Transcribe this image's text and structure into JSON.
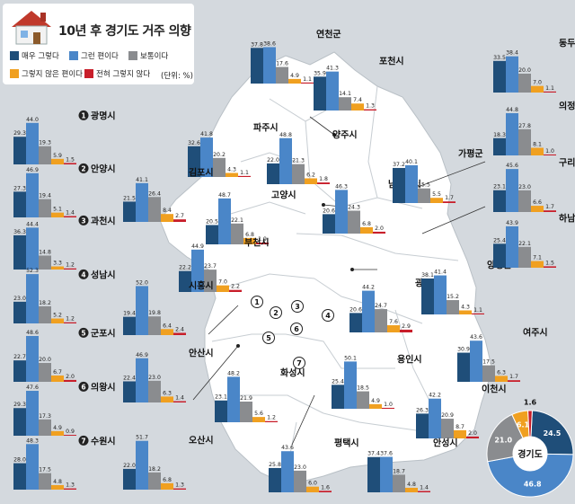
{
  "title": "10년 후 경기도 거주 의향",
  "unit_label": "(단위: %)",
  "legend": [
    {
      "label": "매우 그렇다",
      "color": "#1f4e79"
    },
    {
      "label": "그런 편이다",
      "color": "#4a86c8"
    },
    {
      "label": "보통이다",
      "color": "#8a8c8f"
    },
    {
      "label": "그렇지 않은 편이다",
      "color": "#f0a020"
    },
    {
      "label": "전혀 그렇지 않다",
      "color": "#c81e2a"
    }
  ],
  "chart_data": {
    "type": "bar",
    "title": "10년 후 경기도 거주 의향",
    "categories": [
      "매우 그렇다",
      "그런 편이다",
      "보통이다",
      "그렇지 않은 편이다",
      "전혀 그렇지 않다"
    ],
    "cities": [
      {
        "name": "광명시",
        "num": "1",
        "values": [
          29.3,
          44.0,
          19.3,
          5.9,
          1.5
        ]
      },
      {
        "name": "안양시",
        "num": "2",
        "values": [
          27.3,
          46.9,
          19.4,
          5.1,
          1.4
        ]
      },
      {
        "name": "과천시",
        "num": "3",
        "values": [
          36.3,
          44.4,
          14.8,
          3.3,
          1.2
        ]
      },
      {
        "name": "성남시",
        "num": "4",
        "values": [
          23.0,
          52.3,
          18.2,
          5.2,
          1.2
        ]
      },
      {
        "name": "군포시",
        "num": "5",
        "values": [
          22.7,
          48.6,
          20.0,
          6.7,
          2.0
        ]
      },
      {
        "name": "의왕시",
        "num": "6",
        "values": [
          29.3,
          47.6,
          17.3,
          4.9,
          0.9
        ]
      },
      {
        "name": "수원시",
        "num": "7",
        "values": [
          28.0,
          48.3,
          17.5,
          4.8,
          1.3
        ]
      },
      {
        "name": "연천군",
        "values": [
          37.8,
          38.6,
          17.6,
          4.9,
          1.1
        ]
      },
      {
        "name": "포천시",
        "values": [
          35.9,
          41.3,
          14.1,
          7.4,
          1.3
        ]
      },
      {
        "name": "파주시",
        "values": [
          32.6,
          41.8,
          20.2,
          4.3,
          1.1
        ]
      },
      {
        "name": "양주시",
        "values": [
          22.0,
          48.8,
          21.3,
          6.2,
          1.8
        ]
      },
      {
        "name": "김포시",
        "values": [
          21.5,
          41.1,
          26.4,
          8.4,
          2.7
        ]
      },
      {
        "name": "고양시",
        "values": [
          20.5,
          48.7,
          22.1,
          6.8,
          1.9
        ]
      },
      {
        "name": "남양주시",
        "values": [
          20.6,
          46.3,
          24.3,
          6.8,
          2.0
        ]
      },
      {
        "name": "가평군",
        "values": [
          37.2,
          40.1,
          15.5,
          5.5,
          1.7
        ]
      },
      {
        "name": "부천시",
        "values": [
          22.2,
          44.9,
          23.7,
          7.0,
          2.2
        ]
      },
      {
        "name": "시흥시",
        "values": [
          19.4,
          52.0,
          19.8,
          6.4,
          2.4
        ]
      },
      {
        "name": "광주시",
        "values": [
          20.6,
          44.2,
          24.7,
          7.6,
          2.9
        ]
      },
      {
        "name": "양평군",
        "values": [
          38.1,
          41.4,
          15.2,
          4.3,
          1.1
        ]
      },
      {
        "name": "안산시",
        "values": [
          22.4,
          46.9,
          23.0,
          6.3,
          1.4
        ]
      },
      {
        "name": "여주시",
        "values": [
          30.9,
          43.6,
          17.5,
          6.3,
          1.7
        ]
      },
      {
        "name": "화성시",
        "values": [
          23.1,
          48.2,
          21.9,
          5.6,
          1.2
        ]
      },
      {
        "name": "용인시",
        "values": [
          25.4,
          50.1,
          18.5,
          4.9,
          1.0
        ]
      },
      {
        "name": "이천시",
        "values": [
          26.3,
          42.2,
          20.9,
          8.7,
          2.0
        ]
      },
      {
        "name": "오산시",
        "values": [
          22.0,
          51.7,
          18.2,
          6.8,
          1.3
        ]
      },
      {
        "name": "평택시",
        "values": [
          25.8,
          43.6,
          23.0,
          6.0,
          1.6
        ]
      },
      {
        "name": "안성시",
        "values": [
          37.4,
          37.6,
          18.7,
          4.8,
          1.4
        ]
      },
      {
        "name": "동두천시",
        "values": [
          33.5,
          38.4,
          20.0,
          7.0,
          1.1
        ]
      },
      {
        "name": "의정부시",
        "values": [
          18.3,
          44.8,
          27.8,
          8.1,
          1.0
        ]
      },
      {
        "name": "구리시",
        "values": [
          23.1,
          45.6,
          23.0,
          6.6,
          1.7
        ]
      },
      {
        "name": "하남시",
        "values": [
          25.4,
          43.9,
          22.1,
          7.1,
          1.5
        ]
      }
    ],
    "pie": {
      "name": "경기도",
      "values": [
        24.5,
        46.8,
        21.0,
        6.1,
        1.6
      ]
    }
  }
}
